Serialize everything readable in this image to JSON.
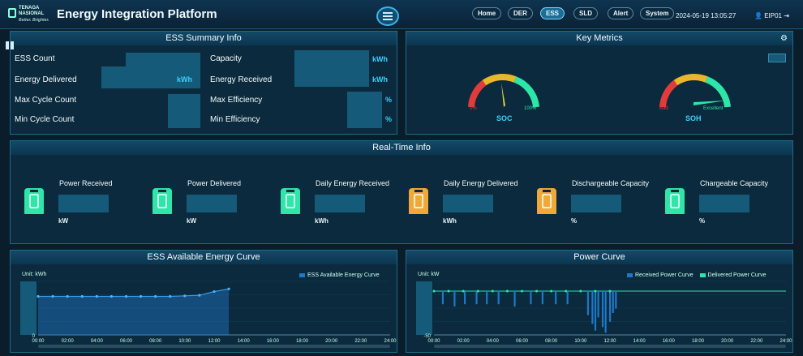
{
  "header": {
    "logo_text": "TENAGA NASIONAL",
    "logo_sub": "Better. Brighter.",
    "title": "Energy Integration Platform",
    "nav": [
      "Home",
      "DER",
      "ESS",
      "SLD",
      "Alert",
      "System"
    ],
    "active_nav": "ESS",
    "datetime": "2024-05-19 13:05:27",
    "user": "EIP01",
    "icons": [
      "menu-icon",
      "user-icon",
      "logout-icon"
    ]
  },
  "ess_summary": {
    "title": "ESS Summary Info",
    "ess_count": "ESS Count",
    "capacity": "Capacity",
    "capacity_unit": "kWh",
    "energy_delivered": "Energy Delivered",
    "energy_delivered_unit": "kWh",
    "energy_received": "Energy Received",
    "energy_received_unit": "kWh",
    "max_cycle": "Max Cycle Count",
    "max_eff": "Max Efficiency",
    "max_eff_unit": "%",
    "min_cycle": "Min Cycle Count",
    "min_eff": "Min Efficiency",
    "min_eff_unit": "%"
  },
  "key_metrics": {
    "title": "Key Metrics",
    "soc": {
      "name": "SOC",
      "min": "0%",
      "max": "100%"
    },
    "soh": {
      "name": "SOH",
      "min": "Bad",
      "max": "Excellent"
    }
  },
  "realtime": {
    "title": "Real-Time Info",
    "items": [
      {
        "label": "Power Received",
        "unit": "kW"
      },
      {
        "label": "Power Delivered",
        "unit": "kW"
      },
      {
        "label": "Daily Energy Received",
        "unit": "kWh"
      },
      {
        "label": "Daily Energy Delivered",
        "unit": "kWh"
      },
      {
        "label": "Dischargeable Capacity",
        "unit": "%"
      },
      {
        "label": "Chargeable Capacity",
        "unit": "%"
      }
    ]
  },
  "colors": {
    "accent": "#3ad0ff",
    "green": "#2ee6a8",
    "orange": "#f0a838",
    "bar": "#1e78c8"
  },
  "chart_data": [
    {
      "type": "area",
      "title": "ESS Available Energy Curve",
      "ylabel": "Unit: kWh",
      "ytick_min": "0",
      "x": [
        "00:00",
        "02:00",
        "04:00",
        "06:00",
        "08:00",
        "10:00",
        "12:00",
        "14:00",
        "16:00",
        "18:00",
        "20:00",
        "22:00",
        "24:00"
      ],
      "series": [
        {
          "name": "ESS Available Energy Curve",
          "points": [
            [
              0,
              0.72
            ],
            [
              0.5,
              0.72
            ],
            [
              1,
              0.72
            ],
            [
              2,
              0.72
            ],
            [
              3,
              0.72
            ],
            [
              4,
              0.72
            ],
            [
              5,
              0.72
            ],
            [
              6,
              0.72
            ],
            [
              7,
              0.72
            ],
            [
              8,
              0.72
            ],
            [
              9,
              0.72
            ],
            [
              10,
              0.73
            ],
            [
              11,
              0.74
            ],
            [
              12,
              0.81
            ],
            [
              13,
              0.86
            ]
          ]
        }
      ]
    },
    {
      "type": "line",
      "title": "Power Curve",
      "ylabel": "Unit: kW",
      "ytick_min": "-50",
      "x": [
        "00:00",
        "02:00",
        "04:00",
        "06:00",
        "08:00",
        "10:00",
        "12:00",
        "14:00",
        "16:00",
        "18:00",
        "20:00",
        "22:00",
        "24:00"
      ],
      "series": [
        {
          "name": "Received Power Curve"
        },
        {
          "name": "Delivered Power Curve"
        }
      ],
      "received_dips": [
        [
          0.6,
          0.3
        ],
        [
          1.4,
          0.35
        ],
        [
          2.1,
          0.3
        ],
        [
          2.9,
          0.3
        ],
        [
          3.6,
          0.3
        ],
        [
          4.4,
          0.3
        ],
        [
          5.5,
          0.35
        ],
        [
          6.6,
          0.3
        ],
        [
          7.4,
          0.3
        ],
        [
          8.3,
          0.3
        ],
        [
          9.1,
          0.3
        ],
        [
          10.5,
          0.55
        ],
        [
          10.8,
          0.75
        ],
        [
          11.0,
          0.9
        ],
        [
          11.2,
          0.6
        ],
        [
          11.5,
          0.82
        ],
        [
          11.7,
          0.95
        ],
        [
          12.0,
          0.7
        ],
        [
          12.2,
          0.5
        ],
        [
          12.4,
          0.4
        ]
      ]
    }
  ]
}
